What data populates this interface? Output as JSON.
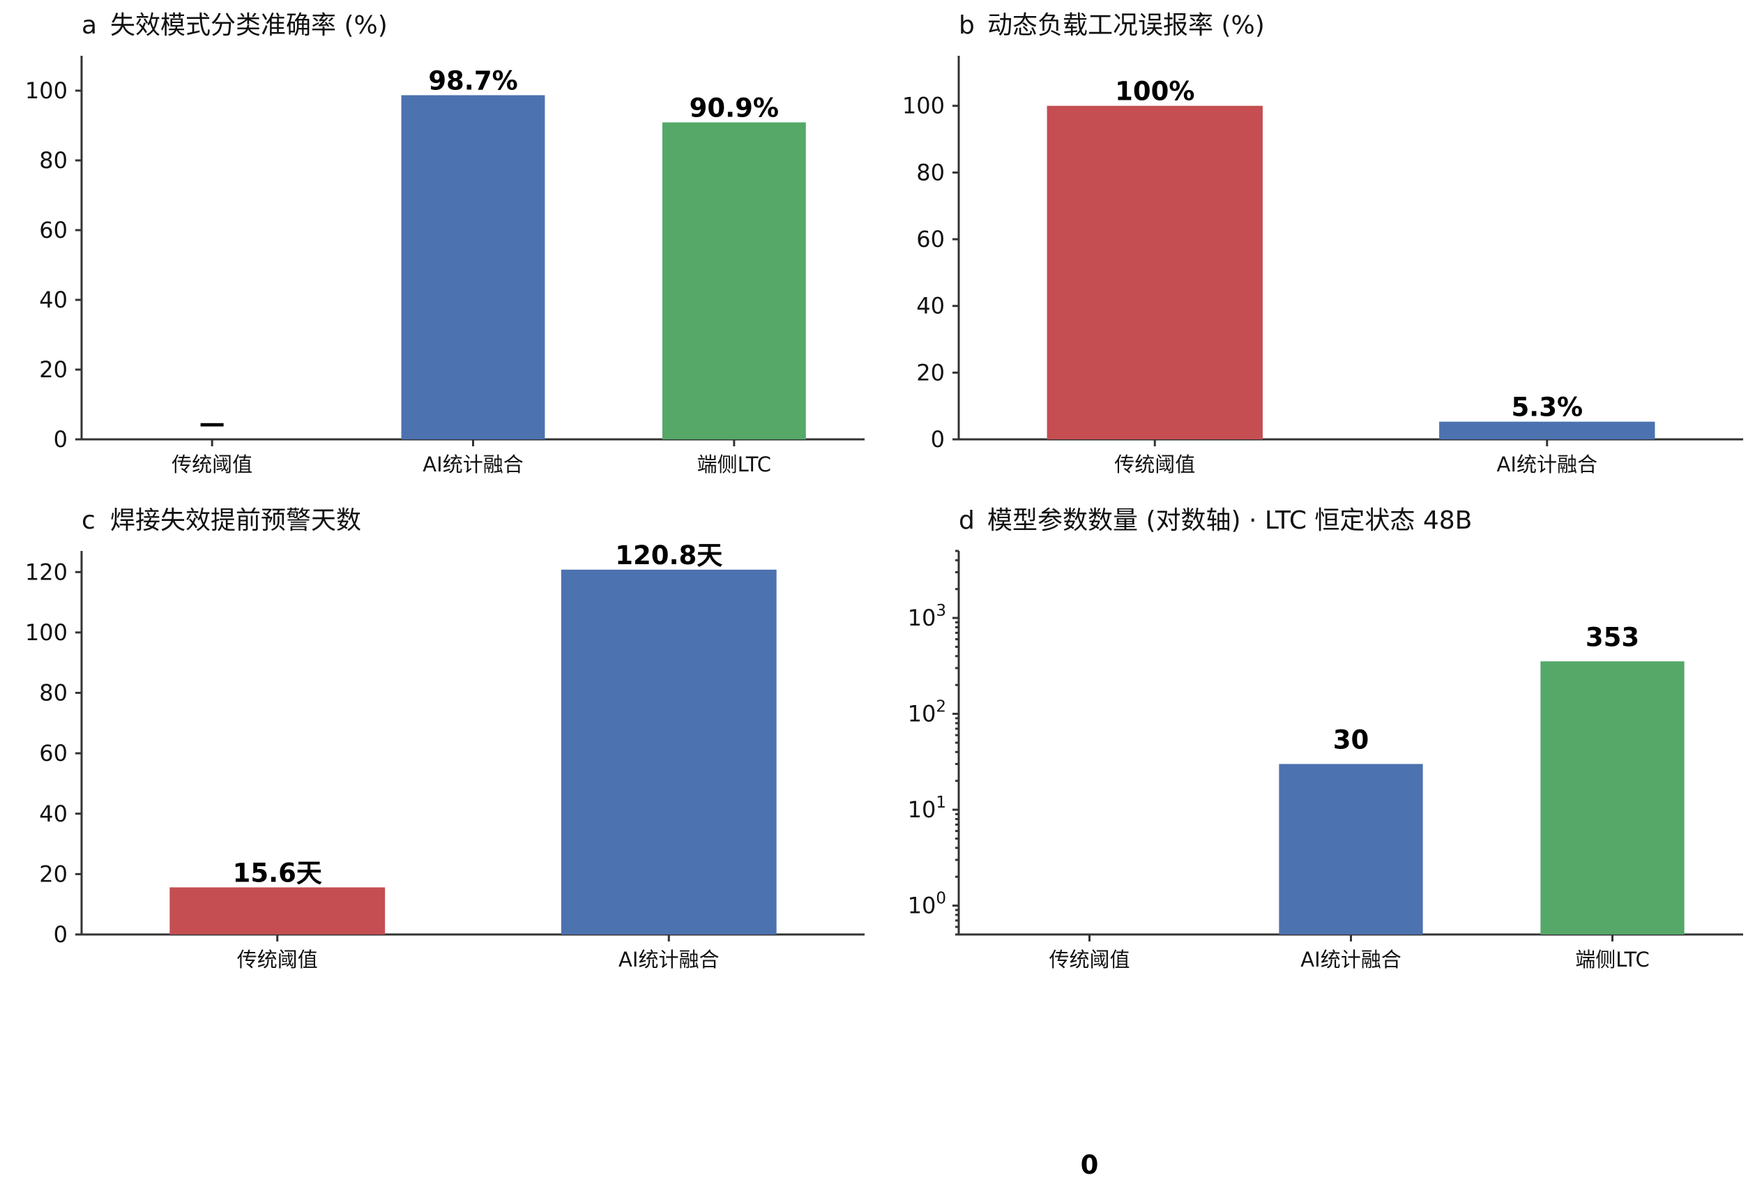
{
  "colors": {
    "traditional": "#c44e52",
    "ai_fusion": "#4c72b0",
    "edge_ltc": "#55a868"
  },
  "chart_data": [
    {
      "panel": "a",
      "type": "bar",
      "title": "失效模式分类准确率 (%)",
      "categories": [
        "传统阈值",
        "AI统计融合",
        "端侧LTC"
      ],
      "values": [
        null,
        98.7,
        90.9
      ],
      "data_labels": [
        "—",
        "98.7%",
        "90.9%"
      ],
      "colors": [
        "#c44e52",
        "#4c72b0",
        "#55a868"
      ],
      "ylim": [
        0,
        110
      ],
      "yticks": [
        0,
        20,
        40,
        60,
        80,
        100
      ],
      "scale": "linear"
    },
    {
      "panel": "b",
      "type": "bar",
      "title": "动态负载工况误报率 (%)",
      "categories": [
        "传统阈值",
        "AI统计融合"
      ],
      "values": [
        100,
        5.3
      ],
      "data_labels": [
        "100%",
        "5.3%"
      ],
      "colors": [
        "#c44e52",
        "#4c72b0"
      ],
      "ylim": [
        0,
        115
      ],
      "yticks": [
        0,
        20,
        40,
        60,
        80,
        100
      ],
      "scale": "linear"
    },
    {
      "panel": "c",
      "type": "bar",
      "title": "焊接失效提前预警天数",
      "categories": [
        "传统阈值",
        "AI统计融合"
      ],
      "values": [
        15.6,
        120.8
      ],
      "data_labels": [
        "15.6天",
        "120.8天"
      ],
      "colors": [
        "#c44e52",
        "#4c72b0"
      ],
      "ylim": [
        0,
        127
      ],
      "yticks": [
        0,
        20,
        40,
        60,
        80,
        100,
        120
      ],
      "scale": "linear"
    },
    {
      "panel": "d",
      "type": "bar",
      "title": "模型参数数量 (对数轴) · LTC 恒定状态 48B",
      "categories": [
        "传统阈值",
        "AI统计融合",
        "端侧LTC"
      ],
      "values": [
        0,
        30,
        353
      ],
      "data_labels": [
        "0",
        "30",
        "353"
      ],
      "colors": [
        "#c44e52",
        "#4c72b0",
        "#55a868"
      ],
      "ylim": [
        0.5,
        5000
      ],
      "yticks": [
        1,
        10,
        100,
        1000
      ],
      "ytick_labels": [
        "10^0",
        "10^1",
        "10^2",
        "10^3"
      ],
      "scale": "log"
    }
  ]
}
